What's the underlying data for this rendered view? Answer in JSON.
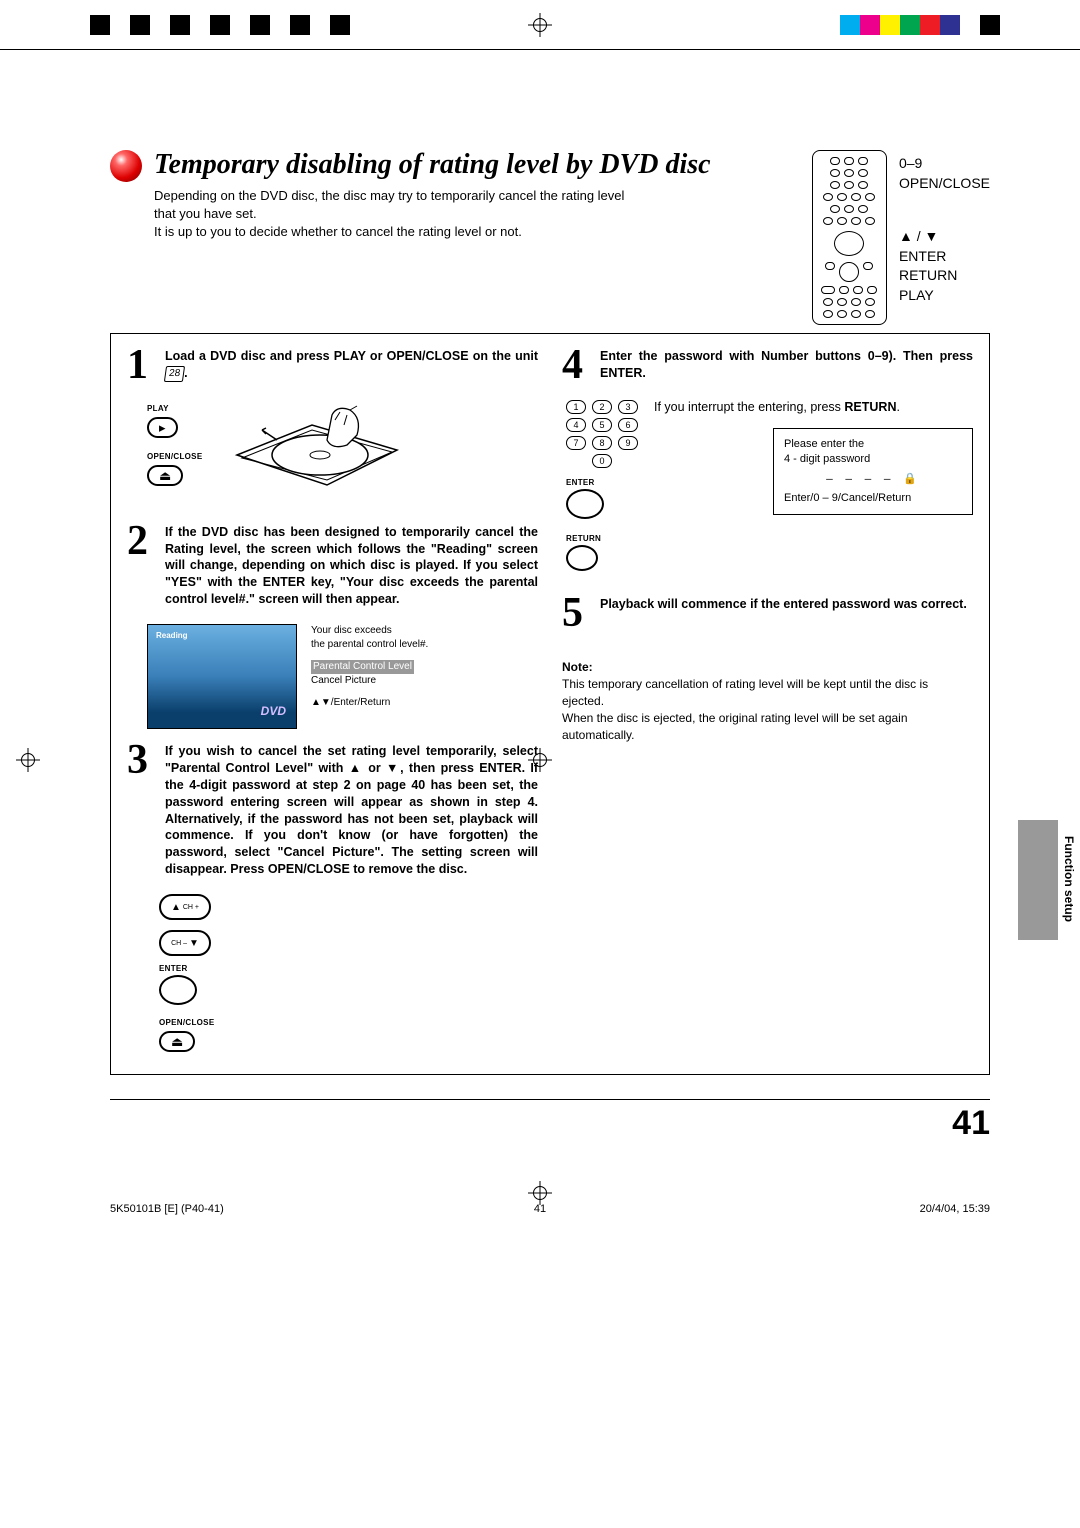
{
  "cropbar_colors": [
    "#00adee",
    "#ed008c",
    "#fff100",
    "#00a54f",
    "#ee1d25",
    "#2f3192",
    "#ffffff",
    "#000000"
  ],
  "title": "Temporary disabling of rating level by DVD disc",
  "remote_labels": {
    "line1": "0–9",
    "line2": "OPEN/CLOSE",
    "line3": "▲ / ▼",
    "line4": "ENTER",
    "line5": "RETURN",
    "line6": "PLAY"
  },
  "intro_p1": "Depending on the DVD disc, the disc may try to temporarily cancel the rating level that you have set.",
  "intro_p2": "It is up to you to decide whether to cancel the rating level or not.",
  "step1": {
    "num": "1",
    "text_a": "Load a DVD disc and press PLAY or OPEN/CLOSE on the unit ",
    "key": "28",
    "text_b": ".",
    "play_label": "PLAY",
    "play_glyph": "▸",
    "open_label": "OPEN/CLOSE",
    "open_glyph": "⏏"
  },
  "step2": {
    "num": "2",
    "text": "If the DVD disc has been designed to temporarily cancel the Rating level, the screen which follows the \"Reading\" screen will change, depending on which disc is played. If you select \"YES\" with the ENTER key, \"Your disc exceeds the parental control level#.\" screen will then appear.",
    "tv_reading": "Reading",
    "tv_dvd": "DVD",
    "note1": "Your disc exceeds",
    "note2": "the parental control level#.",
    "menu1": "Parental Control Level",
    "menu2": "Cancel Picture",
    "hint": "▲▼/Enter/Return"
  },
  "step3": {
    "num": "3",
    "text": "If you wish to cancel the set rating level temporarily, select \"Parental Control Level\" with ▲ or ▼, then press ENTER. If the 4-digit password at step 2 on page 40 has been set, the password entering screen will appear as shown in step 4. Alternatively, if the password has not been set, playback will commence. If you don't know (or have forgotten) the password, select \"Cancel Picture\". The setting screen will disappear. Press OPEN/CLOSE to remove the disc.",
    "ch_plus": "CH +",
    "ch_minus": "CH –",
    "enter": "ENTER",
    "open_label": "OPEN/CLOSE",
    "open_glyph": "⏏"
  },
  "step4": {
    "num": "4",
    "text": "Enter the password with Number buttons 0–9). Then press ENTER.",
    "numbers": [
      "1",
      "2",
      "3",
      "4",
      "5",
      "6",
      "7",
      "8",
      "9",
      "0"
    ],
    "enter": "ENTER",
    "return": "RETURN",
    "side_text": "If you interrupt the entering, press ",
    "side_return": "RETURN",
    "side_dot": ".",
    "box_l1": "Please enter the",
    "box_l2": "4 - digit password",
    "box_dashes": "– – – – 🔒",
    "box_l3": "Enter/0 – 9/Cancel/Return"
  },
  "step5": {
    "num": "5",
    "text": "Playback will commence if the entered password was correct."
  },
  "note": {
    "heading": "Note:",
    "p1": "This temporary cancellation of rating level will be kept until the disc is ejected.",
    "p2": "When the disc is ejected, the original rating level will be set again automatically."
  },
  "side_tab": "Function setup",
  "page_number": "41",
  "footer": {
    "left": "5K50101B [E] (P40-41)",
    "mid": "41",
    "right": "20/4/04, 15:39"
  }
}
